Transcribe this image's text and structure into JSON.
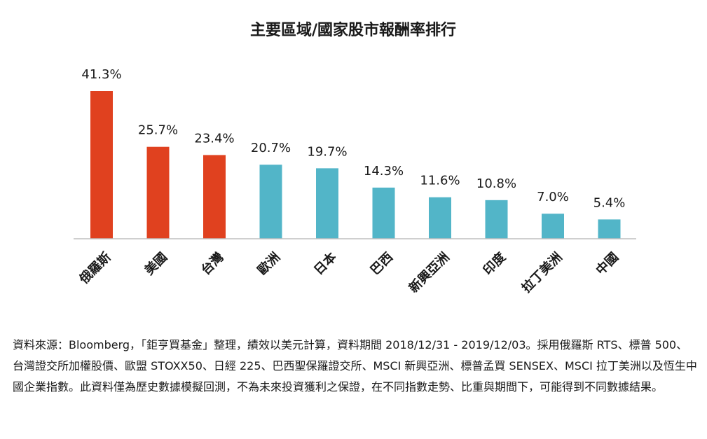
{
  "chart_data": {
    "type": "bar",
    "title": "主要區域/國家股市報酬率排行",
    "categories": [
      "俄羅斯",
      "美國",
      "台灣",
      "歐洲",
      "日本",
      "巴西",
      "新興亞洲",
      "印度",
      "拉丁美洲",
      "中國"
    ],
    "values": [
      41.3,
      25.7,
      23.4,
      20.7,
      19.7,
      14.3,
      11.6,
      10.8,
      7.0,
      5.4
    ],
    "value_labels": [
      "41.3%",
      "25.7%",
      "23.4%",
      "20.7%",
      "19.7%",
      "14.3%",
      "11.6%",
      "10.8%",
      "7.0%",
      "5.4%"
    ],
    "highlight_count": 3,
    "ylim": [
      0,
      50
    ],
    "grid": false,
    "legend": "none",
    "xlabel": "",
    "ylabel": ""
  },
  "colors": {
    "highlight": "#e0411f",
    "normal": "#52b5c8",
    "axis": "#bfbfbf"
  },
  "footnote": "資料來源：Bloomberg，「鉅亨買基金」整理，績效以美元計算，資料期間 2018/12/31 - 2019/12/03。採用俄羅斯 RTS、標普 500、台灣證交所加權股價、歐盟 STOXX50、日經 225、巴西聖保羅證交所、MSCI 新興亞洲、標普孟買 SENSEX、MSCI 拉丁美洲以及恆生中國企業指數。此資料僅為歷史數據模擬回測，不為未來投資獲利之保證，在不同指數走勢、比重與期間下，可能得到不同數據結果。"
}
